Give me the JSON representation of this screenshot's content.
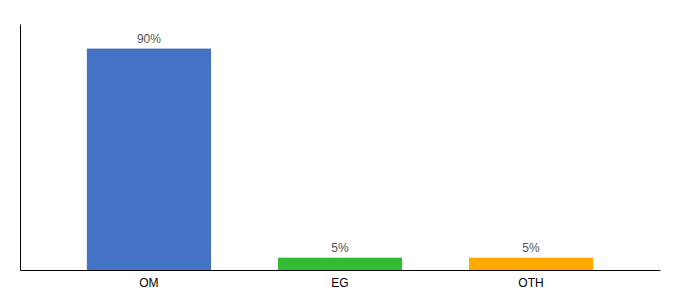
{
  "chart_data": {
    "type": "bar",
    "categories": [
      "OM",
      "EG",
      "OTH"
    ],
    "values": [
      90,
      5,
      5
    ],
    "value_labels": [
      "90%",
      "5%",
      "5%"
    ],
    "colors": [
      "#4472c4",
      "#33bb33",
      "#ffaa00"
    ],
    "ylim": [
      0,
      100
    ],
    "data_labels": true,
    "tick_labels": "x",
    "grid": false
  }
}
